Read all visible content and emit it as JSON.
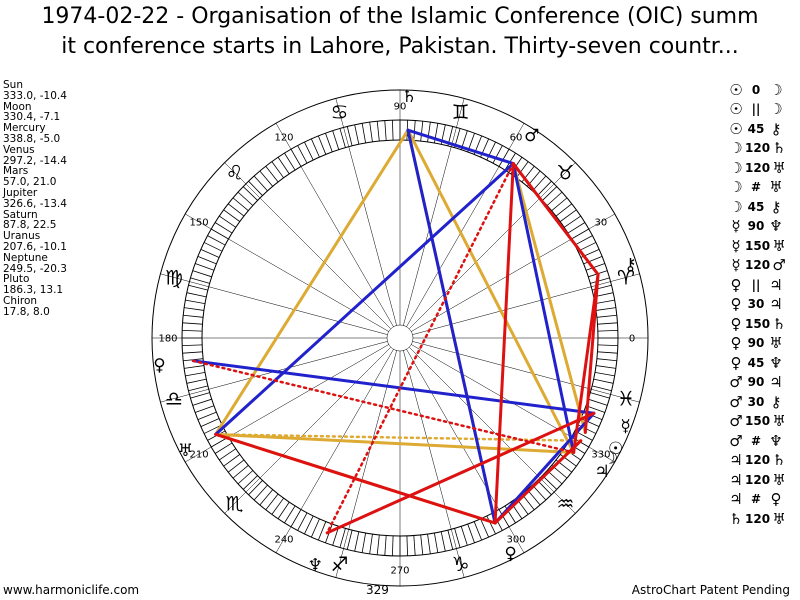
{
  "title_line1": "1974-02-22 - Organisation of the Islamic Conference (OIC) summ",
  "title_line2": "it conference starts in Lahore, Pakistan. Thirty-seven countr...",
  "positions": [
    {
      "name": "Sun",
      "value": "333.0, -10.4"
    },
    {
      "name": "Moon",
      "value": "330.4, -7.1"
    },
    {
      "name": "Mercury",
      "value": "338.8, -5.0"
    },
    {
      "name": "Venus",
      "value": "297.2, -14.4"
    },
    {
      "name": "Mars",
      "value": "57.0, 21.0"
    },
    {
      "name": "Jupiter",
      "value": "326.6, -13.4"
    },
    {
      "name": "Saturn",
      "value": "87.8, 22.5"
    },
    {
      "name": "Uranus",
      "value": "207.6, -10.1"
    },
    {
      "name": "Neptune",
      "value": "249.5, -20.3"
    },
    {
      "name": "Pluto",
      "value": "186.3, 13.1"
    },
    {
      "name": "Chiron",
      "value": "17.8, 8.0"
    }
  ],
  "aspects": [
    {
      "a": "☉",
      "sym": "0",
      "b": "☽"
    },
    {
      "a": "☉",
      "sym": "||",
      "b": "☽"
    },
    {
      "a": "☉",
      "sym": "45",
      "b": "⚷"
    },
    {
      "a": "☽",
      "sym": "120",
      "b": "♄"
    },
    {
      "a": "☽",
      "sym": "120",
      "b": "♅"
    },
    {
      "a": "☽",
      "sym": "#",
      "b": "♅"
    },
    {
      "a": "☽",
      "sym": "45",
      "b": "⚷"
    },
    {
      "a": "☿",
      "sym": "90",
      "b": "♆"
    },
    {
      "a": "☿",
      "sym": "150",
      "b": "♅"
    },
    {
      "a": "☿",
      "sym": "120",
      "b": "♂"
    },
    {
      "a": "♀",
      "sym": "||",
      "b": "♃"
    },
    {
      "a": "♀",
      "sym": "30",
      "b": "♃"
    },
    {
      "a": "♀",
      "sym": "150",
      "b": "♄"
    },
    {
      "a": "♀",
      "sym": "90",
      "b": "♅"
    },
    {
      "a": "♀",
      "sym": "45",
      "b": "♆"
    },
    {
      "a": "♂",
      "sym": "90",
      "b": "♃"
    },
    {
      "a": "♂",
      "sym": "30",
      "b": "⚷"
    },
    {
      "a": "♂",
      "sym": "150",
      "b": "♅"
    },
    {
      "a": "♂",
      "sym": "#",
      "b": "♆"
    },
    {
      "a": "♃",
      "sym": "120",
      "b": "♄"
    },
    {
      "a": "♃",
      "sym": "120",
      "b": "♅"
    },
    {
      "a": "♃",
      "sym": "#",
      "b": "♀"
    },
    {
      "a": "♄",
      "sym": "120",
      "b": "♅"
    }
  ],
  "degree_labels": [
    "0",
    "30",
    "60",
    "90",
    "120",
    "150",
    "180",
    "210",
    "240",
    "270",
    "300",
    "330"
  ],
  "sign_glyphs": [
    "♈",
    "♉",
    "♊",
    "♋",
    "♌",
    "♍",
    "♎",
    "♏",
    "♐",
    "♑",
    "♒",
    "♓"
  ],
  "planets": [
    {
      "name": "Sun",
      "glyph": "☉",
      "lon": 333.0
    },
    {
      "name": "Moon",
      "glyph": "☽",
      "lon": 330.4
    },
    {
      "name": "Mercury",
      "glyph": "☿",
      "lon": 338.8
    },
    {
      "name": "Venus",
      "glyph": "♀",
      "lon": 297.2
    },
    {
      "name": "Mars",
      "glyph": "♂",
      "lon": 57.0
    },
    {
      "name": "Jupiter",
      "glyph": "♃",
      "lon": 326.6
    },
    {
      "name": "Saturn",
      "glyph": "♄",
      "lon": 87.8
    },
    {
      "name": "Uranus",
      "glyph": "♅",
      "lon": 207.6
    },
    {
      "name": "Neptune",
      "glyph": "♆",
      "lon": 249.5
    },
    {
      "name": "Pluto",
      "glyph": "♀",
      "lon": 186.3
    },
    {
      "name": "Chiron",
      "glyph": "⚷",
      "lon": 17.8
    }
  ],
  "aspect_lines": [
    {
      "from": "Saturn",
      "to": "Venus",
      "color": "#ddaa33",
      "style": "solid"
    },
    {
      "from": "Saturn",
      "to": "Uranus",
      "color": "#ddaa33",
      "style": "solid"
    },
    {
      "from": "Uranus",
      "to": "Venus",
      "color": "#ddaa33",
      "style": "solid"
    },
    {
      "from": "Uranus",
      "to": "Jupiter",
      "color": "#ddaa33",
      "style": "solid"
    },
    {
      "from": "Saturn",
      "to": "Jupiter",
      "color": "#ddaa33",
      "style": "solid"
    },
    {
      "from": "Moon",
      "to": "Uranus",
      "color": "#ddaa33",
      "style": "dotted"
    },
    {
      "from": "Mars",
      "to": "Sun",
      "color": "#ddaa33",
      "style": "solid"
    },
    {
      "from": "Saturn",
      "to": "Mars",
      "color": "#2222cc",
      "style": "solid"
    },
    {
      "from": "Saturn",
      "to": "Venus",
      "color": "#2222cc",
      "style": "solid"
    },
    {
      "from": "Mars",
      "to": "Uranus",
      "color": "#2222cc",
      "style": "solid"
    },
    {
      "from": "Pluto",
      "to": "Mercury",
      "color": "#2222cc",
      "style": "solid"
    },
    {
      "from": "Venus",
      "to": "Mercury",
      "color": "#2222cc",
      "style": "solid"
    },
    {
      "from": "Mars",
      "to": "Jupiter",
      "color": "#2222cc",
      "style": "solid"
    },
    {
      "from": "Mars",
      "to": "Venus",
      "color": "#dd1111",
      "style": "solid"
    },
    {
      "from": "Mars",
      "to": "Neptune",
      "color": "#dd1111",
      "style": "dotted"
    },
    {
      "from": "Neptune",
      "to": "Mercury",
      "color": "#dd1111",
      "style": "solid"
    },
    {
      "from": "Uranus",
      "to": "Venus",
      "color": "#dd1111",
      "style": "solid"
    },
    {
      "from": "Pluto",
      "to": "Jupiter",
      "color": "#dd1111",
      "style": "dotted"
    },
    {
      "from": "Venus",
      "to": "Moon",
      "color": "#dd1111",
      "style": "solid"
    },
    {
      "from": "Chiron",
      "to": "Sun",
      "color": "#dd1111",
      "style": "solid"
    },
    {
      "from": "Chiron",
      "to": "Jupiter",
      "color": "#dd1111",
      "style": "solid"
    },
    {
      "from": "Chiron",
      "to": "Mars",
      "color": "#dd1111",
      "style": "solid"
    }
  ],
  "footer": {
    "left": "www.harmoniclife.com",
    "center": "329",
    "right": "AstroChart Patent Pending"
  },
  "colors": {
    "trine_sextile": "#ddaa33",
    "square_opposition": "#2222cc",
    "minor": "#dd1111"
  }
}
